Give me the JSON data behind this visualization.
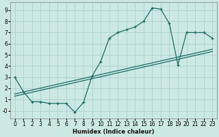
{
  "xlabel": "Humidex (Indice chaleur)",
  "bg_color": "#cce8e5",
  "grid_color": "#aacfcc",
  "line_color": "#1a6b62",
  "xlim": [
    -0.5,
    23.5
  ],
  "ylim": [
    -0.7,
    9.7
  ],
  "xticks": [
    0,
    1,
    2,
    3,
    4,
    5,
    6,
    7,
    8,
    9,
    10,
    11,
    12,
    13,
    14,
    15,
    16,
    17,
    18,
    19,
    20,
    21,
    22,
    23
  ],
  "yticks": [
    0,
    1,
    2,
    3,
    4,
    5,
    6,
    7,
    8,
    9
  ],
  "ytick_labels": [
    "-0",
    "1",
    "2",
    "3",
    "4",
    "5",
    "6",
    "7",
    "8",
    "9"
  ],
  "curve_x": [
    0,
    1,
    2,
    3,
    4,
    5,
    6,
    7,
    8,
    9,
    10,
    11,
    12,
    13,
    14,
    15,
    16,
    17,
    18,
    19,
    20,
    21,
    22,
    23
  ],
  "curve_y": [
    3.0,
    1.7,
    0.8,
    0.8,
    0.65,
    0.65,
    0.65,
    -0.15,
    0.75,
    3.1,
    4.4,
    6.5,
    7.0,
    7.25,
    7.5,
    8.0,
    9.2,
    9.1,
    7.8,
    4.1,
    7.0,
    7.0,
    7.0,
    6.5
  ],
  "line1_x": [
    0,
    23
  ],
  "line1_y": [
    1.5,
    5.5
  ],
  "line2_x": [
    0,
    23
  ],
  "line2_y": [
    1.3,
    5.3
  ]
}
